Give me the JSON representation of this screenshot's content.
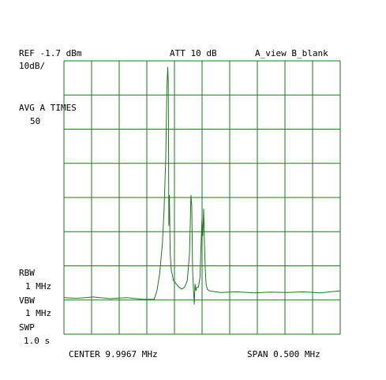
{
  "header": {
    "ref": "REF -1.7 dBm",
    "att": "ATT 10 dB",
    "view": "A_view B_blank",
    "scale": "10dB/"
  },
  "averaging": {
    "label": "AVG A TIMES",
    "value": "50"
  },
  "bandwidth": {
    "rbw_label": "RBW",
    "rbw_value": "1 MHz",
    "vbw_label": "VBW",
    "vbw_value": "1 MHz",
    "swp_label": "SWP",
    "swp_value": "1.0 s"
  },
  "footer": {
    "center": "CENTER 9.9967 MHz",
    "span": "SPAN 0.500 MHz"
  },
  "colors": {
    "grid": "#1a7a1a",
    "trace": "#1a7a1a",
    "text": "#000000",
    "background": "#ffffff"
  },
  "chart_data": {
    "type": "line",
    "grid": true,
    "x_divisions": 10,
    "y_divisions": 8,
    "xlim": [
      9.7467,
      10.2467
    ],
    "ylim": [
      -81.7,
      -1.7
    ],
    "series": [
      {
        "x": [
          9.7467,
          9.77,
          9.8,
          9.83,
          9.86,
          9.89,
          9.91,
          9.915,
          9.92,
          9.925,
          9.928,
          9.931,
          9.933,
          9.9345,
          9.9355,
          9.9365,
          9.9375,
          9.939,
          9.941,
          9.945,
          9.95,
          9.955,
          9.96,
          9.965,
          9.97,
          9.974,
          9.9765,
          9.978,
          9.9795,
          9.981,
          9.9825,
          9.984,
          9.9855,
          9.987,
          9.99,
          9.993,
          9.995,
          9.9965,
          9.998,
          9.9995,
          10.001,
          10.0025,
          10.004,
          10.006,
          10.01,
          10.03,
          10.06,
          10.09,
          10.12,
          10.15,
          10.18,
          10.21,
          10.2467
        ],
        "y": [
          -71.0,
          -71.2,
          -70.8,
          -71.3,
          -71.0,
          -71.5,
          -71.5,
          -69.0,
          -64.0,
          -55.0,
          -45.0,
          -30.0,
          -10.0,
          -3.5,
          -8.0,
          -50.0,
          -41.0,
          -58.0,
          -63.0,
          -66.0,
          -67.0,
          -68.0,
          -68.5,
          -68.0,
          -66.0,
          -58.0,
          -41.0,
          -44.0,
          -63.0,
          -68.0,
          -73.0,
          -67.0,
          -69.0,
          -68.0,
          -68.0,
          -65.0,
          -55.0,
          -48.0,
          -53.0,
          -45.0,
          -55.0,
          -63.0,
          -67.0,
          -68.5,
          -69.0,
          -69.5,
          -69.3,
          -69.6,
          -69.4,
          -69.5,
          -69.3,
          -69.6,
          -69.0
        ]
      }
    ]
  }
}
